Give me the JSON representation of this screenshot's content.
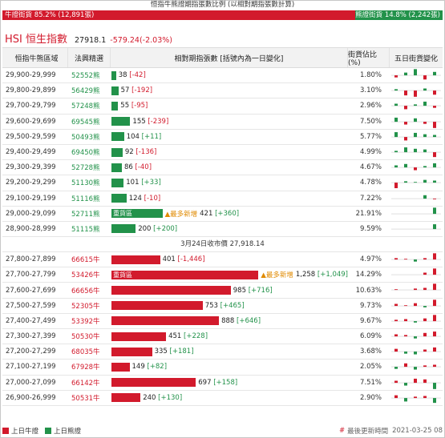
{
  "top": {
    "title": "恒指牛熊證期指張數比例 (以相對期指張數計算)",
    "bull_label": "牛證街貨 85.2% (12,891張)",
    "bear_label": "熊證街貨 14.8% (2,242張)",
    "bull_fraction": 0.852
  },
  "hsi": {
    "name": "HSI 恒生指數",
    "price": "27918.1",
    "change": "-579.24(-2.03%)"
  },
  "headers": {
    "range": "恒指牛熊區域",
    "code": "法興精選",
    "bar": "相對期指張數 [括號內為一日變化]",
    "pct": "街貨佔比(%)",
    "mini": "五日街貨變化"
  },
  "colors": {
    "bull": "#d21a2c",
    "bear": "#22924a",
    "accent": "#e08a00"
  },
  "bear_rows": [
    {
      "range": "29,900-29,999",
      "code": "52552熊",
      "value": 38,
      "value_text": "38",
      "change": "[-42]",
      "pct": "1.80%",
      "mini": [
        -0.3,
        0.4,
        0.9,
        -0.6,
        0.5
      ]
    },
    {
      "range": "29,800-29,899",
      "code": "56429熊",
      "value": 57,
      "value_text": "57",
      "change": "[-192]",
      "pct": "3.10%",
      "mini": [
        0.2,
        -0.7,
        -0.9,
        0.3,
        -0.6
      ]
    },
    {
      "range": "29,700-29,799",
      "code": "57248熊",
      "value": 55,
      "value_text": "55",
      "change": "[-95]",
      "pct": "2.96%",
      "mini": [
        0.3,
        -0.5,
        0.2,
        0.6,
        -0.3
      ]
    },
    {
      "range": "29,600-29,699",
      "code": "69545熊",
      "value": 155,
      "value_text": "155",
      "change": "[-239]",
      "pct": "7.50%",
      "mini": [
        0.6,
        -0.4,
        0.5,
        -0.3,
        -0.9
      ]
    },
    {
      "range": "29,500-29,599",
      "code": "50493熊",
      "value": 104,
      "value_text": "104",
      "change": "[+11]",
      "pct": "5.77%",
      "mini": [
        0.7,
        -0.5,
        0.6,
        0.4,
        0.3
      ]
    },
    {
      "range": "29,400-29,499",
      "code": "69450熊",
      "value": 92,
      "value_text": "92",
      "change": "[-136]",
      "pct": "4.99%",
      "mini": [
        0.2,
        0.7,
        0.5,
        0.4,
        -0.7
      ]
    },
    {
      "range": "29,300-29,399",
      "code": "52728熊",
      "value": 86,
      "value_text": "86",
      "change": "[-40]",
      "pct": "4.67%",
      "mini": [
        0.3,
        0.5,
        -0.4,
        0.2,
        0.6
      ]
    },
    {
      "range": "29,200-29,299",
      "code": "51130熊",
      "value": 101,
      "value_text": "101",
      "change": "[+33]",
      "pct": "4.78%",
      "mini": [
        -0.8,
        0.2,
        0.1,
        0.4,
        0.3
      ]
    },
    {
      "range": "29,100-29,199",
      "code": "51116熊",
      "value": 124,
      "value_text": "124",
      "change": "[-10]",
      "pct": "7.22%",
      "mini": [
        0,
        0,
        0,
        0.5,
        -0.1
      ]
    },
    {
      "range": "29,000-29,099",
      "code": "52711熊",
      "value": 421,
      "value_text": "421",
      "change": "[+360]",
      "pct": "21.91%",
      "heavy": "重貨區",
      "most_new": "▲最多新增",
      "mini": [
        0,
        0,
        0,
        0,
        0.9
      ]
    },
    {
      "range": "28,900-28,999",
      "code": "51115熊",
      "value": 200,
      "value_text": "200",
      "change": "[+200]",
      "pct": "9.59%",
      "mini": [
        0,
        0,
        0,
        0,
        0.7
      ]
    }
  ],
  "close_label": "3月24日收市價 27,918.14",
  "bull_rows": [
    {
      "range": "27,800-27,899",
      "code": "66615牛",
      "value": 401,
      "value_text": "401",
      "change": "[-1,446]",
      "pct": "4.97%",
      "mini": [
        0.2,
        0.1,
        -0.3,
        0.2,
        0.9
      ]
    },
    {
      "range": "27,700-27,799",
      "code": "53426牛",
      "value": 1258,
      "value_text": "1,258",
      "change": "[+1,049]",
      "pct": "14.29%",
      "heavy": "重貨區",
      "most_new": "▲最多新增",
      "mini": [
        0,
        0,
        0,
        0.3,
        0.9
      ]
    },
    {
      "range": "27,600-27,699",
      "code": "66656牛",
      "value": 985,
      "value_text": "985",
      "change": "[+716]",
      "pct": "10.63%",
      "mini": [
        0.1,
        0,
        0.2,
        0.3,
        0.9
      ]
    },
    {
      "range": "27,500-27,599",
      "code": "52305牛",
      "value": 753,
      "value_text": "753",
      "change": "[+465]",
      "pct": "9.73%",
      "mini": [
        0.3,
        0.1,
        0.4,
        -0.2,
        0.9
      ]
    },
    {
      "range": "27,400-27,499",
      "code": "53392牛",
      "value": 888,
      "value_text": "888",
      "change": "[+646]",
      "pct": "9.67%",
      "mini": [
        0.2,
        0.3,
        -0.2,
        0.4,
        0.9
      ]
    },
    {
      "range": "27,300-27,399",
      "code": "50530牛",
      "value": 451,
      "value_text": "451",
      "change": "[+228]",
      "pct": "6.09%",
      "mini": [
        0.3,
        0.2,
        -0.3,
        0.5,
        0.7
      ]
    },
    {
      "range": "27,200-27,299",
      "code": "68035牛",
      "value": 335,
      "value_text": "335",
      "change": "[+181]",
      "pct": "3.68%",
      "mini": [
        0.4,
        -0.3,
        -0.4,
        0.3,
        0.6
      ]
    },
    {
      "range": "27,100-27,199",
      "code": "67928牛",
      "value": 149,
      "value_text": "149",
      "change": "[+82]",
      "pct": "2.05%",
      "mini": [
        -0.3,
        0.5,
        -0.4,
        0.2,
        0.3
      ]
    },
    {
      "range": "27,000-27,099",
      "code": "66142牛",
      "value": 697,
      "value_text": "697",
      "change": "[+158]",
      "pct": "7.51%",
      "mini": [
        0.3,
        -0.4,
        0.6,
        0.5,
        -0.9
      ]
    },
    {
      "range": "26,900-26,999",
      "code": "50531牛",
      "value": 240,
      "value_text": "240",
      "change": "[+130]",
      "pct": "2.90%",
      "mini": [
        0.4,
        -0.5,
        0.2,
        0.3,
        -0.7
      ]
    }
  ],
  "footer": {
    "legend_bull": "上日牛證",
    "legend_bear": "上日熊證",
    "hash": "#",
    "update_label": "最後更新時間",
    "update_time": "2021-03-25 08"
  }
}
